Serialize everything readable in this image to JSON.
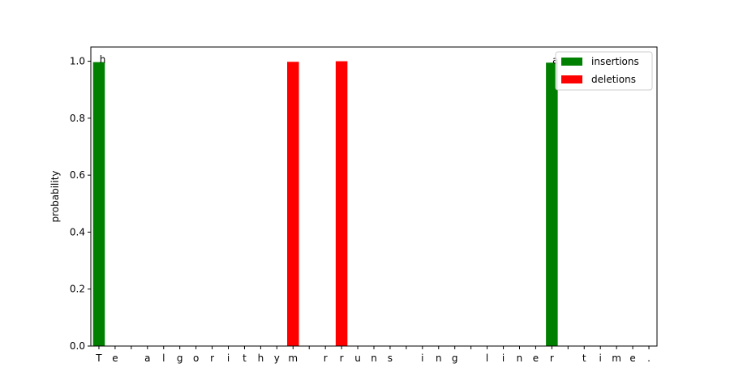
{
  "chart_data": {
    "type": "bar",
    "ylabel": "probability",
    "ylim": [
      0,
      1.05
    ],
    "yticks": [
      0.0,
      0.2,
      0.4,
      0.6,
      0.8,
      1.0
    ],
    "ytick_labels": [
      "0.0",
      "0.2",
      "0.4",
      "0.6",
      "0.8",
      "1.0"
    ],
    "categories": [
      "T",
      "e",
      " ",
      "a",
      "l",
      "g",
      "o",
      "r",
      "i",
      "t",
      "h",
      "y",
      "m",
      " ",
      "r",
      "r",
      "u",
      "n",
      "s",
      " ",
      "i",
      "n",
      "g",
      " ",
      "l",
      "i",
      "n",
      "e",
      "r",
      " ",
      "t",
      "i",
      "m",
      "e",
      "."
    ],
    "legend_position": "top-right",
    "series": [
      {
        "name": "insertions",
        "color": "#008000",
        "values": [
          0.997,
          0,
          0,
          0,
          0,
          0,
          0,
          0,
          0,
          0,
          0,
          0,
          0,
          0,
          0,
          0,
          0,
          0,
          0,
          0,
          0,
          0,
          0,
          0,
          0,
          0,
          0,
          0,
          0.995,
          0,
          0,
          0,
          0,
          0,
          0
        ],
        "annotations": [
          {
            "category_index": 0,
            "text": "h"
          },
          {
            "category_index": 28,
            "text": "a"
          }
        ]
      },
      {
        "name": "deletions",
        "color": "#ff0000",
        "values": [
          0,
          0,
          0,
          0,
          0,
          0,
          0,
          0,
          0,
          0,
          0,
          0,
          0.998,
          0,
          0,
          1.0,
          0,
          0,
          0,
          0,
          0,
          0,
          0,
          0,
          0,
          0,
          0,
          0,
          0,
          0,
          0,
          0,
          0,
          0,
          0
        ]
      }
    ]
  }
}
